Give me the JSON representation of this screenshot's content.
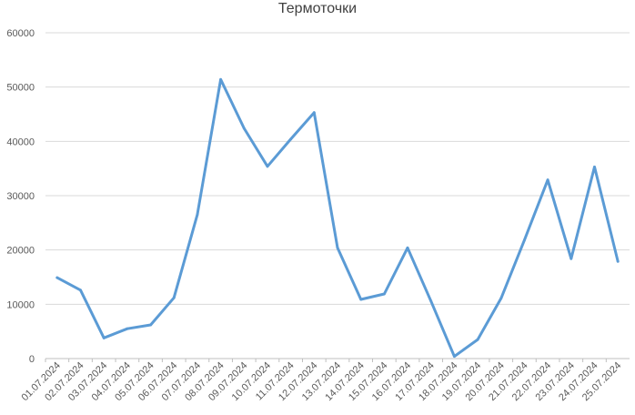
{
  "chart_data": {
    "type": "line",
    "title": "Термоточки",
    "xlabel": "",
    "ylabel": "",
    "categories": [
      "01.07.2024",
      "02.07.2024",
      "03.07.2024",
      "04.07.2024",
      "05.07.2024",
      "06.07.2024",
      "07.07.2024",
      "08.07.2024",
      "09.07.2024",
      "10.07.2024",
      "11.07.2024",
      "12.07.2024",
      "13.07.2024",
      "14.07.2024",
      "15.07.2024",
      "16.07.2024",
      "17.07.2024",
      "18.07.2024",
      "19.07.2024",
      "20.07.2024",
      "21.07.2024",
      "22.07.2024",
      "23.07.2024",
      "24.07.2024",
      "25.07.2024"
    ],
    "series": [
      {
        "values": [
          14900,
          12600,
          3800,
          5500,
          6200,
          11200,
          26500,
          51400,
          42400,
          35400,
          40400,
          45300,
          20400,
          10900,
          11900,
          20400,
          10600,
          400,
          3500,
          11100,
          21800,
          32900,
          18400,
          35300,
          17900
        ],
        "color": "#5b9bd5"
      }
    ],
    "ylim": [
      0,
      60000
    ],
    "yticks": [
      "0",
      "10000",
      "20000",
      "30000",
      "40000",
      "50000",
      "60000"
    ],
    "grid": true,
    "legend": "none"
  }
}
